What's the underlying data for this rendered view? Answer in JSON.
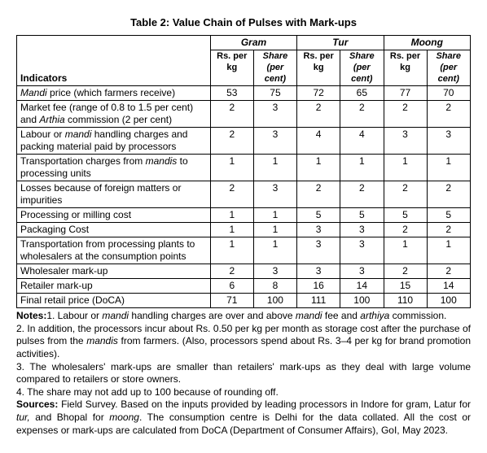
{
  "title": "Table 2: Value Chain of Pulses with Mark-ups",
  "headers": {
    "indicators": "Indicators",
    "groups": [
      "Gram",
      "Tur",
      "Moong"
    ],
    "sub_rs": "Rs. per kg",
    "sub_share": "Share (per cent)"
  },
  "rows": [
    {
      "label_html": "<span class='italic'>Mandi</span> price (which farmers receive)",
      "vals": [
        "53",
        "75",
        "72",
        "65",
        "77",
        "70"
      ]
    },
    {
      "label_html": "Market fee (range of 0.8 to 1.5 per cent) and <span class='italic'>Arthia</span> commission (2 per cent)",
      "vals": [
        "2",
        "3",
        "2",
        "2",
        "2",
        "2"
      ]
    },
    {
      "label_html": "Labour or <span class='italic'>mandi</span> handling charges and packing material paid by processors",
      "vals": [
        "2",
        "3",
        "4",
        "4",
        "3",
        "3"
      ]
    },
    {
      "label_html": "Transportation charges from <span class='italic'>mandis</span> to processing units",
      "vals": [
        "1",
        "1",
        "1",
        "1",
        "1",
        "1"
      ]
    },
    {
      "label_html": "Losses because of foreign matters or impurities",
      "vals": [
        "2",
        "3",
        "2",
        "2",
        "2",
        "2"
      ]
    },
    {
      "label_html": "Processing or milling cost",
      "vals": [
        "1",
        "1",
        "5",
        "5",
        "5",
        "5"
      ]
    },
    {
      "label_html": "Packaging Cost",
      "vals": [
        "1",
        "1",
        "3",
        "3",
        "2",
        "2"
      ]
    },
    {
      "label_html": "Transportation from processing plants to wholesalers at the consumption points",
      "vals": [
        "1",
        "1",
        "3",
        "3",
        "1",
        "1"
      ]
    },
    {
      "label_html": "Wholesaler mark-up",
      "vals": [
        "2",
        "3",
        "3",
        "3",
        "2",
        "2"
      ]
    },
    {
      "label_html": "Retailer mark-up",
      "vals": [
        "6",
        "8",
        "16",
        "14",
        "15",
        "14"
      ]
    },
    {
      "label_html": "Final retail price (DoCA)",
      "vals": [
        "71",
        "100",
        "111",
        "100",
        "110",
        "100"
      ]
    }
  ],
  "notes": {
    "n1_prefix": "Notes:",
    "n1": "1. Labour or ",
    "n1_it": "mandi",
    "n1_b": " handling charges are over and above ",
    "n1_it2": "mandi",
    "n1_c": " fee and ",
    "n1_it3": "arthiya",
    "n1_d": " commission.",
    "n2": "2. In addition, the processors incur about Rs. 0.50 per kg per month as storage cost after the purchase of pulses from the ",
    "n2_it": "mandis",
    "n2_b": " from farmers. (Also, processors spend about Rs. 3–4 per kg for brand promotion activities).",
    "n3": "3. The wholesalers' mark-ups are smaller than retailers' mark-ups as they deal with large volume compared to retailers or store owners.",
    "n4": "4. The share may not add up to 100 because of rounding off.",
    "src_prefix": "Sources:",
    "src_a": " Field Survey. Based on the inputs provided by leading processors in Indore for gram, Latur for ",
    "src_it1": "tur,",
    "src_b": " and Bhopal for ",
    "src_it2": "moong",
    "src_c": ". The consumption centre is Delhi for the data collated. All the cost or expenses or mark-ups are calculated from DoCA (Department of Consumer Affairs), GoI, May 2023."
  }
}
